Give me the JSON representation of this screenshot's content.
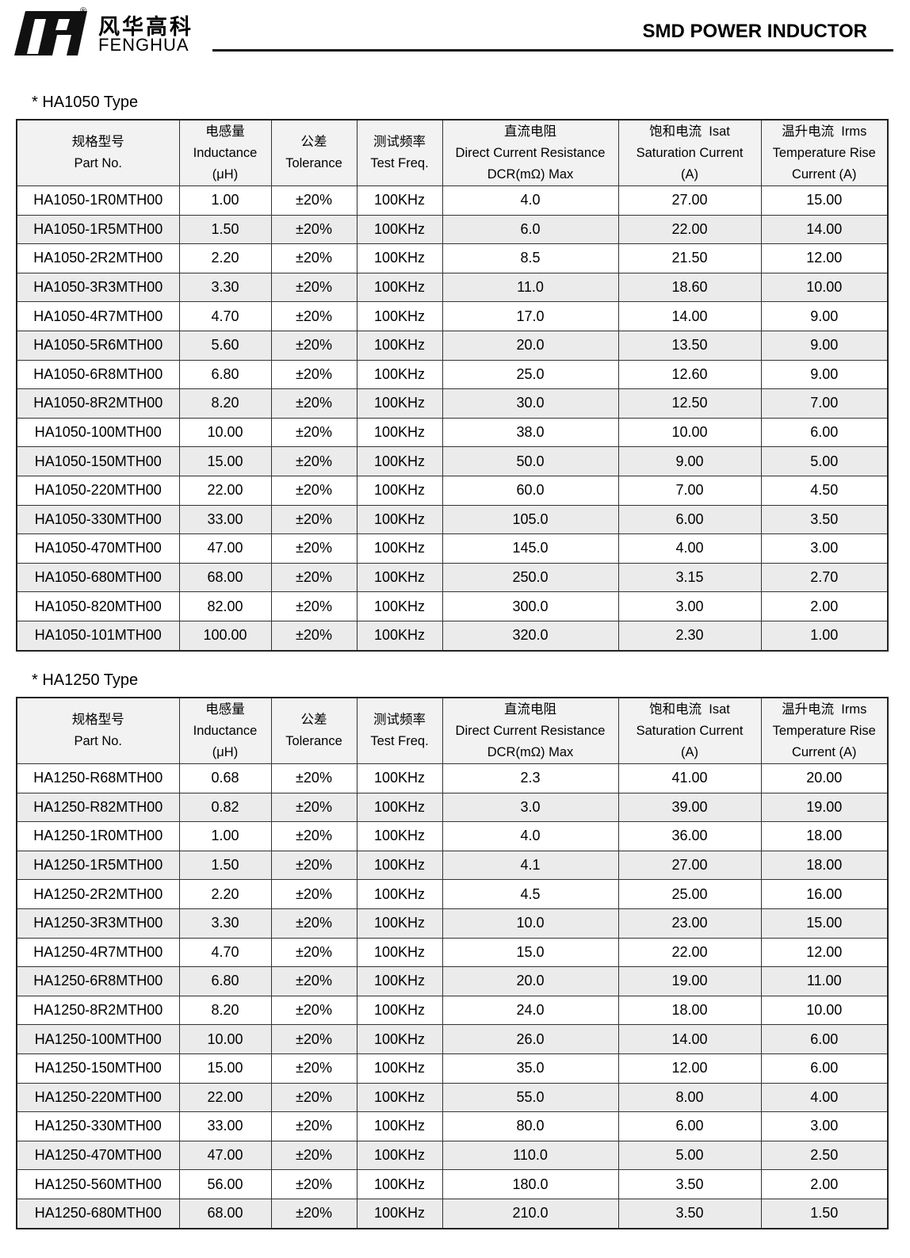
{
  "header": {
    "brand_cn": "风华高科",
    "brand_en": "FENGHUA",
    "registered": "®",
    "title": "SMD POWER INDUCTOR"
  },
  "sections": [
    {
      "title": "* HA1050 Type",
      "columns": [
        [
          "规格型号",
          "Part No."
        ],
        [
          "电感量",
          "Inductance",
          "(μH)"
        ],
        [
          "公差",
          "Tolerance"
        ],
        [
          "测试频率",
          "Test Freq."
        ],
        [
          "直流电阻",
          "Direct Current Resistance",
          "DCR(mΩ) Max"
        ],
        [
          "饱和电流  Isat",
          "Saturation Current",
          "(A)"
        ],
        [
          "温升电流  Irms",
          "Temperature Rise",
          "Current (A)"
        ]
      ],
      "rows": [
        [
          "HA1050-1R0MTH00",
          "1.00",
          "±20%",
          "100KHz",
          "4.0",
          "27.00",
          "15.00"
        ],
        [
          "HA1050-1R5MTH00",
          "1.50",
          "±20%",
          "100KHz",
          "6.0",
          "22.00",
          "14.00"
        ],
        [
          "HA1050-2R2MTH00",
          "2.20",
          "±20%",
          "100KHz",
          "8.5",
          "21.50",
          "12.00"
        ],
        [
          "HA1050-3R3MTH00",
          "3.30",
          "±20%",
          "100KHz",
          "11.0",
          "18.60",
          "10.00"
        ],
        [
          "HA1050-4R7MTH00",
          "4.70",
          "±20%",
          "100KHz",
          "17.0",
          "14.00",
          "9.00"
        ],
        [
          "HA1050-5R6MTH00",
          "5.60",
          "±20%",
          "100KHz",
          "20.0",
          "13.50",
          "9.00"
        ],
        [
          "HA1050-6R8MTH00",
          "6.80",
          "±20%",
          "100KHz",
          "25.0",
          "12.60",
          "9.00"
        ],
        [
          "HA1050-8R2MTH00",
          "8.20",
          "±20%",
          "100KHz",
          "30.0",
          "12.50",
          "7.00"
        ],
        [
          "HA1050-100MTH00",
          "10.00",
          "±20%",
          "100KHz",
          "38.0",
          "10.00",
          "6.00"
        ],
        [
          "HA1050-150MTH00",
          "15.00",
          "±20%",
          "100KHz",
          "50.0",
          "9.00",
          "5.00"
        ],
        [
          "HA1050-220MTH00",
          "22.00",
          "±20%",
          "100KHz",
          "60.0",
          "7.00",
          "4.50"
        ],
        [
          "HA1050-330MTH00",
          "33.00",
          "±20%",
          "100KHz",
          "105.0",
          "6.00",
          "3.50"
        ],
        [
          "HA1050-470MTH00",
          "47.00",
          "±20%",
          "100KHz",
          "145.0",
          "4.00",
          "3.00"
        ],
        [
          "HA1050-680MTH00",
          "68.00",
          "±20%",
          "100KHz",
          "250.0",
          "3.15",
          "2.70"
        ],
        [
          "HA1050-820MTH00",
          "82.00",
          "±20%",
          "100KHz",
          "300.0",
          "3.00",
          "2.00"
        ],
        [
          "HA1050-101MTH00",
          "100.00",
          "±20%",
          "100KHz",
          "320.0",
          "2.30",
          "1.00"
        ]
      ]
    },
    {
      "title": "* HA1250 Type",
      "columns": [
        [
          "规格型号",
          "Part No."
        ],
        [
          "电感量",
          "Inductance",
          "(μH)"
        ],
        [
          "公差",
          "Tolerance"
        ],
        [
          "测试频率",
          "Test Freq."
        ],
        [
          "直流电阻",
          "Direct Current Resistance",
          "DCR(mΩ) Max"
        ],
        [
          "饱和电流  Isat",
          "Saturation Current",
          "(A)"
        ],
        [
          "温升电流  Irms",
          "Temperature Rise",
          "Current (A)"
        ]
      ],
      "rows": [
        [
          "HA1250-R68MTH00",
          "0.68",
          "±20%",
          "100KHz",
          "2.3",
          "41.00",
          "20.00"
        ],
        [
          "HA1250-R82MTH00",
          "0.82",
          "±20%",
          "100KHz",
          "3.0",
          "39.00",
          "19.00"
        ],
        [
          "HA1250-1R0MTH00",
          "1.00",
          "±20%",
          "100KHz",
          "4.0",
          "36.00",
          "18.00"
        ],
        [
          "HA1250-1R5MTH00",
          "1.50",
          "±20%",
          "100KHz",
          "4.1",
          "27.00",
          "18.00"
        ],
        [
          "HA1250-2R2MTH00",
          "2.20",
          "±20%",
          "100KHz",
          "4.5",
          "25.00",
          "16.00"
        ],
        [
          "HA1250-3R3MTH00",
          "3.30",
          "±20%",
          "100KHz",
          "10.0",
          "23.00",
          "15.00"
        ],
        [
          "HA1250-4R7MTH00",
          "4.70",
          "±20%",
          "100KHz",
          "15.0",
          "22.00",
          "12.00"
        ],
        [
          "HA1250-6R8MTH00",
          "6.80",
          "±20%",
          "100KHz",
          "20.0",
          "19.00",
          "11.00"
        ],
        [
          "HA1250-8R2MTH00",
          "8.20",
          "±20%",
          "100KHz",
          "24.0",
          "18.00",
          "10.00"
        ],
        [
          "HA1250-100MTH00",
          "10.00",
          "±20%",
          "100KHz",
          "26.0",
          "14.00",
          "6.00"
        ],
        [
          "HA1250-150MTH00",
          "15.00",
          "±20%",
          "100KHz",
          "35.0",
          "12.00",
          "6.00"
        ],
        [
          "HA1250-220MTH00",
          "22.00",
          "±20%",
          "100KHz",
          "55.0",
          "8.00",
          "4.00"
        ],
        [
          "HA1250-330MTH00",
          "33.00",
          "±20%",
          "100KHz",
          "80.0",
          "6.00",
          "3.00"
        ],
        [
          "HA1250-470MTH00",
          "47.00",
          "±20%",
          "100KHz",
          "110.0",
          "5.00",
          "2.50"
        ],
        [
          "HA1250-560MTH00",
          "56.00",
          "±20%",
          "100KHz",
          "180.0",
          "3.50",
          "2.00"
        ],
        [
          "HA1250-680MTH00",
          "68.00",
          "±20%",
          "100KHz",
          "210.0",
          "3.50",
          "1.50"
        ]
      ]
    }
  ]
}
